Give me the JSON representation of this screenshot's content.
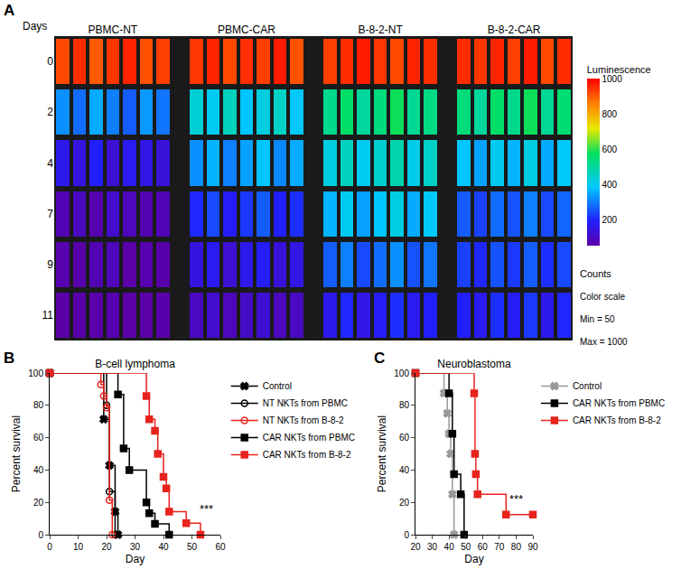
{
  "chart_data": [
    {
      "type": "heatmap",
      "panel": "A",
      "rows_label": "Days",
      "rows": [
        0,
        2,
        4,
        7,
        9,
        11
      ],
      "groups": [
        {
          "name": "PBMC-NT",
          "values": [
            [
              920,
              950,
              900,
              940,
              960,
              910,
              930
            ],
            [
              320,
              280,
              350,
              300,
              260,
              330,
              290
            ],
            [
              160,
              140,
              190,
              120,
              170,
              150,
              130
            ],
            [
              70,
              90,
              60,
              110,
              80,
              65,
              75
            ],
            [
              60,
              55,
              70,
              80,
              50,
              60,
              55
            ],
            [
              50,
              55,
              50,
              60,
              50,
              50,
              55
            ]
          ]
        },
        {
          "name": "PBMC-CAR",
          "values": [
            [
              940,
              960,
              920,
              950,
              930,
              970,
              910
            ],
            [
              430,
              400,
              460,
              380,
              420,
              450,
              390
            ],
            [
              320,
              360,
              300,
              340,
              380,
              310,
              350
            ],
            [
              200,
              240,
              180,
              220,
              260,
              190,
              210
            ],
            [
              140,
              170,
              120,
              160,
              180,
              130,
              150
            ],
            [
              90,
              110,
              80,
              100,
              120,
              85,
              95
            ]
          ]
        },
        {
          "name": "B-8-2-NT",
          "values": [
            [
              930,
              950,
              970,
              940,
              920,
              960,
              950
            ],
            [
              520,
              560,
              500,
              540,
              580,
              510,
              530
            ],
            [
              420,
              460,
              400,
              440,
              480,
              410,
              450
            ],
            [
              360,
              400,
              340,
              380,
              420,
              350,
              390
            ],
            [
              260,
              300,
              240,
              280,
              320,
              250,
              290
            ],
            [
              160,
              200,
              150,
              180,
              210,
              170,
              190
            ]
          ]
        },
        {
          "name": "B-8-2-CAR",
          "values": [
            [
              950,
              940,
              960,
              930,
              970,
              920,
              950
            ],
            [
              540,
              500,
              560,
              520,
              580,
              510,
              550
            ],
            [
              380,
              340,
              400,
              360,
              420,
              350,
              390
            ],
            [
              260,
              230,
              280,
              250,
              300,
              240,
              270
            ],
            [
              230,
              200,
              250,
              220,
              260,
              210,
              240
            ],
            [
              190,
              170,
              210,
              180,
              220,
              160,
              200
            ]
          ]
        }
      ],
      "colorbar_title": "Luminescence",
      "color_range": [
        50,
        1000
      ],
      "color_ticks": [
        200,
        400,
        600,
        800,
        1000
      ],
      "scale_notes": [
        "Counts",
        "Color scale",
        "Min = 50",
        "Max = 1000"
      ]
    },
    {
      "type": "line",
      "panel": "B",
      "title": "B-cell lymphoma",
      "x_label": "Day",
      "y_label": "Percent survival",
      "xlim": [
        0,
        60
      ],
      "xticks": [
        0,
        10,
        20,
        30,
        40,
        50,
        60
      ],
      "ylim": [
        0,
        100
      ],
      "yticks": [
        0,
        20,
        40,
        60,
        80,
        100
      ],
      "grid": false,
      "legend": "right",
      "line_style": "step",
      "series": [
        {
          "name": "Control",
          "color": "#000000",
          "marker": "x",
          "x": [
            0,
            19,
            21,
            23,
            24
          ],
          "values": [
            100,
            71.4,
            42.9,
            14.3,
            0
          ]
        },
        {
          "name": "NT NKTs from PBMC",
          "color": "#000000",
          "marker": "circle-open",
          "x": [
            0,
            20,
            21,
            23
          ],
          "values": [
            100,
            80,
            26.7,
            0
          ]
        },
        {
          "name": "NT NKTs from B-8-2",
          "color": "#e8221c",
          "marker": "circle-open",
          "x": [
            0,
            18,
            19,
            20,
            21,
            22
          ],
          "values": [
            100,
            92.9,
            85.7,
            78.6,
            21.4,
            0
          ]
        },
        {
          "name": "CAR NKTs from PBMC",
          "color": "#000000",
          "marker": "square",
          "x": [
            0,
            24,
            26,
            28,
            34,
            35,
            37,
            42
          ],
          "values": [
            100,
            86.7,
            53.3,
            40,
            20,
            13.3,
            6.7,
            0
          ]
        },
        {
          "name": "CAR NKTs from B-8-2",
          "color": "#e8221c",
          "marker": "square",
          "x": [
            0,
            34,
            35,
            37,
            38,
            40,
            41,
            42,
            48,
            53
          ],
          "values": [
            100,
            85.7,
            71.4,
            64.3,
            50,
            35.7,
            28.6,
            14.3,
            7.1,
            0
          ]
        }
      ],
      "annotations": [
        {
          "text": "***",
          "x": 55,
          "y": 16
        }
      ]
    },
    {
      "type": "line",
      "panel": "C",
      "title": "Neuroblastoma",
      "x_label": "Day",
      "y_label": "Percent survival",
      "xlim": [
        20,
        90
      ],
      "xticks": [
        20,
        30,
        40,
        50,
        60,
        70,
        80,
        90
      ],
      "ylim": [
        0,
        100
      ],
      "yticks": [
        0,
        20,
        40,
        60,
        80,
        100
      ],
      "grid": false,
      "legend": "right",
      "line_style": "step",
      "series": [
        {
          "name": "Control",
          "color": "#999999",
          "marker": "x",
          "x": [
            20,
            37,
            39,
            40,
            41,
            42,
            43
          ],
          "values": [
            100,
            87.5,
            75,
            62.5,
            50,
            25,
            0
          ]
        },
        {
          "name": "CAR NKTs from PBMC",
          "color": "#000000",
          "marker": "square",
          "x": [
            20,
            40,
            42,
            43,
            47,
            49
          ],
          "values": [
            100,
            87.5,
            62.5,
            37.5,
            25,
            0
          ]
        },
        {
          "name": "CAR NKTs from B-8-2",
          "color": "#e8221c",
          "marker": "square",
          "x": [
            20,
            55,
            55.5,
            56,
            57,
            74,
            90
          ],
          "values": [
            100,
            87.5,
            50,
            37.5,
            25,
            12.5,
            12.5
          ]
        }
      ],
      "annotations": [
        {
          "text": "***",
          "x": 80,
          "y": 22
        }
      ]
    }
  ]
}
